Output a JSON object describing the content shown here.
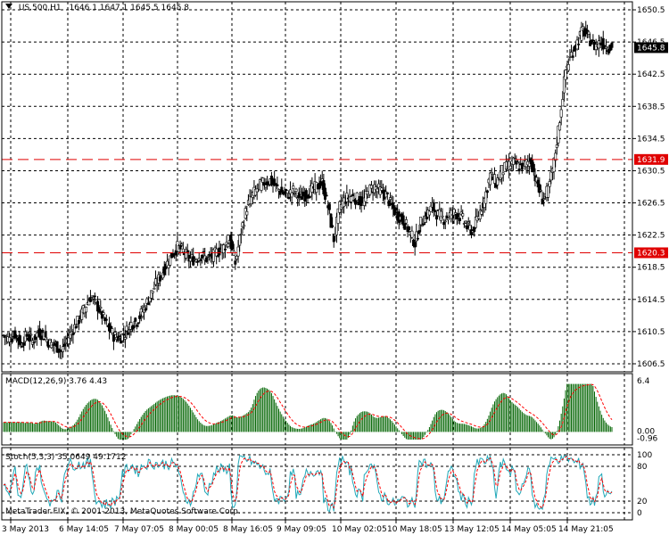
{
  "window": {
    "symbol": "US.500,H1",
    "ohlc": "1646.1 1647.1 1645.5 1645.8",
    "copyright": "MetaTrader FIX, © 2001-2013, MetaQuotes Software Corp."
  },
  "colors": {
    "background": "#ffffff",
    "grid": "#000000",
    "level_line": "#e00000",
    "macd_hist": "#006400",
    "signal": "#ff0000",
    "stoch_main": "#20a8b8",
    "price_tag_bg": "#000000",
    "level_tag_bg": "#e00000"
  },
  "price_axis": {
    "ticks": [
      "1650.5",
      "1646.5",
      "1642.5",
      "1638.5",
      "1634.5",
      "1630.5",
      "1626.5",
      "1622.5",
      "1618.5",
      "1614.5",
      "1610.5",
      "1606.5"
    ],
    "current_price": "1645.8",
    "levels": [
      "1631.9",
      "1620.3"
    ]
  },
  "time_axis": {
    "labels": [
      "3 May 2013",
      "6 May 14:05",
      "7 May 07:05",
      "8 May 00:05",
      "8 May 16:05",
      "9 May 09:05",
      "10 May 02:05",
      "10 May 18:05",
      "13 May 12:05",
      "14 May 05:05",
      "14 May 21:05"
    ]
  },
  "macd": {
    "label": "MACD(12,26,9) 3.76 4.43",
    "axis_ticks": [
      "6.4",
      "0.00",
      "-0.96"
    ]
  },
  "stoch": {
    "label": "Stoch(5,3,3) 35.0649 49.1712",
    "axis_ticks": [
      "100",
      "80",
      "20",
      "0"
    ]
  },
  "chart_data": {
    "type": "candlestick",
    "symbol": "US.500,H1",
    "ylim": [
      1605.5,
      1651.5
    ],
    "close_path": [
      [
        0,
        1610
      ],
      [
        4,
        1609.5
      ],
      [
        8,
        1610.2
      ],
      [
        12,
        1609
      ],
      [
        16,
        1610
      ],
      [
        20,
        1609.3
      ],
      [
        24,
        1610.5
      ],
      [
        28,
        1610
      ],
      [
        32,
        1609
      ],
      [
        36,
        1608.8
      ],
      [
        40,
        1608
      ],
      [
        44,
        1609.5
      ],
      [
        48,
        1610.8
      ],
      [
        52,
        1612
      ],
      [
        56,
        1613.5
      ],
      [
        60,
        1614.8
      ],
      [
        64,
        1614
      ],
      [
        68,
        1612.5
      ],
      [
        72,
        1611
      ],
      [
        76,
        1610
      ],
      [
        80,
        1609.7
      ],
      [
        84,
        1610.3
      ],
      [
        88,
        1611.5
      ],
      [
        92,
        1611.8
      ],
      [
        96,
        1613
      ],
      [
        100,
        1614.5
      ],
      [
        104,
        1616
      ],
      [
        108,
        1617.3
      ],
      [
        112,
        1618.7
      ],
      [
        116,
        1620
      ],
      [
        120,
        1621
      ],
      [
        124,
        1620.5
      ],
      [
        128,
        1619.5
      ],
      [
        132,
        1619.5
      ],
      [
        136,
        1620
      ],
      [
        140,
        1619.6
      ],
      [
        144,
        1619.8
      ],
      [
        148,
        1620.5
      ],
      [
        152,
        1621
      ],
      [
        156,
        1622
      ],
      [
        160,
        1619
      ],
      [
        164,
        1623
      ],
      [
        168,
        1626
      ],
      [
        172,
        1627.5
      ],
      [
        176,
        1628.5
      ],
      [
        180,
        1629
      ],
      [
        184,
        1629.3
      ],
      [
        188,
        1628.5
      ],
      [
        192,
        1627.8
      ],
      [
        196,
        1627.5
      ],
      [
        200,
        1628
      ],
      [
        204,
        1627.2
      ],
      [
        208,
        1627.5
      ],
      [
        212,
        1628
      ],
      [
        216,
        1628.5
      ],
      [
        220,
        1629
      ],
      [
        224,
        1626
      ],
      [
        228,
        1622
      ],
      [
        232,
        1626
      ],
      [
        236,
        1627
      ],
      [
        240,
        1627.3
      ],
      [
        244,
        1627
      ],
      [
        248,
        1626.5
      ],
      [
        252,
        1628
      ],
      [
        256,
        1628.5
      ],
      [
        260,
        1628
      ],
      [
        264,
        1627.5
      ],
      [
        268,
        1626
      ],
      [
        272,
        1625
      ],
      [
        276,
        1624.3
      ],
      [
        280,
        1623
      ],
      [
        284,
        1621.5
      ],
      [
        288,
        1624
      ],
      [
        292,
        1625
      ],
      [
        296,
        1626
      ],
      [
        300,
        1625
      ],
      [
        304,
        1624.5
      ],
      [
        308,
        1625
      ],
      [
        312,
        1625.3
      ],
      [
        316,
        1624.7
      ],
      [
        320,
        1623.5
      ],
      [
        324,
        1623
      ],
      [
        328,
        1625
      ],
      [
        332,
        1627
      ],
      [
        336,
        1630
      ],
      [
        340,
        1629
      ],
      [
        344,
        1630.5
      ],
      [
        348,
        1631
      ],
      [
        352,
        1631.5
      ],
      [
        356,
        1631
      ],
      [
        360,
        1631.3
      ],
      [
        364,
        1631.8
      ],
      [
        368,
        1629
      ],
      [
        372,
        1627
      ],
      [
        376,
        1628
      ],
      [
        380,
        1631.5
      ],
      [
        384,
        1637
      ],
      [
        388,
        1643
      ],
      [
        392,
        1645
      ],
      [
        396,
        1646.5
      ],
      [
        400,
        1648
      ],
      [
        404,
        1647
      ],
      [
        408,
        1646
      ],
      [
        412,
        1646.5
      ],
      [
        416,
        1646
      ],
      [
        420,
        1645.8
      ]
    ],
    "horizontal_levels": [
      1631.9,
      1620.3
    ]
  }
}
